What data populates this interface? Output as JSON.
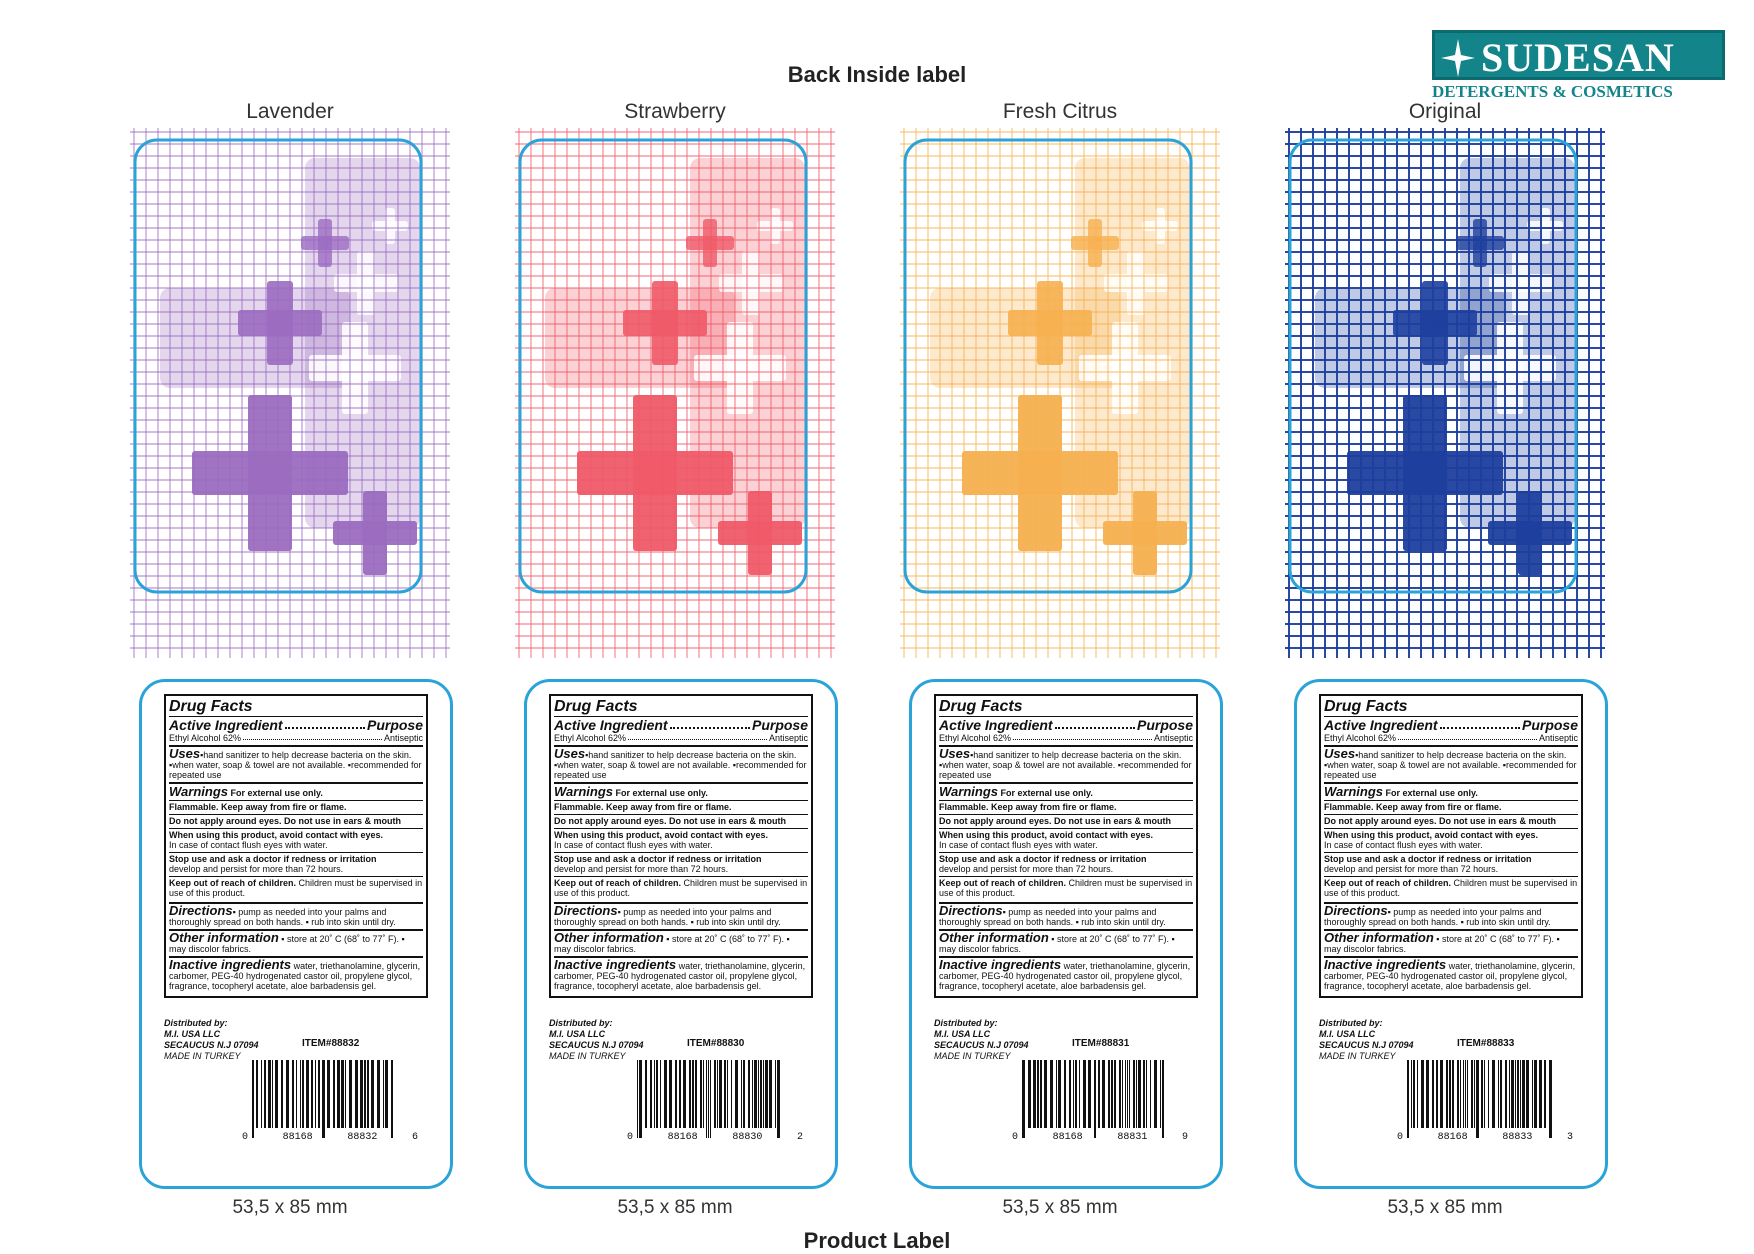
{
  "document": {
    "title": "Back Inside label",
    "footer_cut": "Product Label",
    "company": {
      "name": "SUDESAN",
      "subtitle": "DETERGENTS & COSMETICS",
      "brand_color": "#12848a"
    },
    "size_text": "53,5 x 85 mm",
    "variants": [
      {
        "name": "Lavender",
        "color": "#9b6cc0",
        "item": "ITEM#88832",
        "bc_left": "0",
        "bc_mid1": "88168",
        "bc_mid2": "88832",
        "bc_right": "6"
      },
      {
        "name": "Strawberry",
        "color": "#ef5a68",
        "item": "ITEM#88830",
        "bc_left": "0",
        "bc_mid1": "88168",
        "bc_mid2": "88830",
        "bc_right": "2"
      },
      {
        "name": "Fresh Citrus",
        "color": "#f6b050",
        "item": "ITEM#88831",
        "bc_left": "0",
        "bc_mid1": "88168",
        "bc_mid2": "88831",
        "bc_right": "9"
      },
      {
        "name": "Original",
        "color": "#1e3f9e",
        "item": "ITEM#88833",
        "bc_left": "0",
        "bc_mid1": "88168",
        "bc_mid2": "88833",
        "bc_right": "3"
      }
    ],
    "facts": {
      "title": "Drug Facts",
      "ai_left": "Active Ingredient",
      "ai_right": "Purpose",
      "eth_left": "Ethyl Alcohol 62%",
      "eth_right": "Antiseptic",
      "uses_head": "Uses",
      "uses_text": "▪hand sanitizer to help decrease bacteria on the skin. ▪when water, soap & towel are not available. ▪recommended for repeated use",
      "warn_head": "Warnings",
      "warn_intro": "For external use only.",
      "warn_1": "Flammable. Keep away from fire or flame.",
      "warn_2": "Do not apply around eyes. Do not use in ears & mouth",
      "warn_3a": "When using this product, avoid contact with eyes.",
      "warn_3b": "In case of contact flush eyes with water.",
      "warn_4a": "Stop use and ask a doctor if redness or irritation",
      "warn_4b": "develop and persist for more than 72 hours.",
      "warn_5a": "Keep out of reach of children.",
      "warn_5b": "Children must be supervised in use of this product.",
      "dir_head": "Directions",
      "dir_text": "▪ pump as needed into your palms and thoroughly spread on both hands. ▪ rub into skin until dry.",
      "other_head": "Other information",
      "other_text": "▪ store at 20˚ C (68˚ to 77˚ F). ▪ may discolor fabrics.",
      "inactive_head": "Inactive ingredients",
      "inactive_text": "water, triethanolamine, glycerin, carbomer, PEG-40 hydrogenated castor oil, propylene glycol, fragrance, tocopheryl acetate, aloe barbadensis gel.",
      "dist_1": "Distributed by:",
      "dist_2": "M.I. USA LLC",
      "dist_3": "SECAUCUS N.J 07094",
      "made": "MADE IN TURKEY"
    }
  }
}
